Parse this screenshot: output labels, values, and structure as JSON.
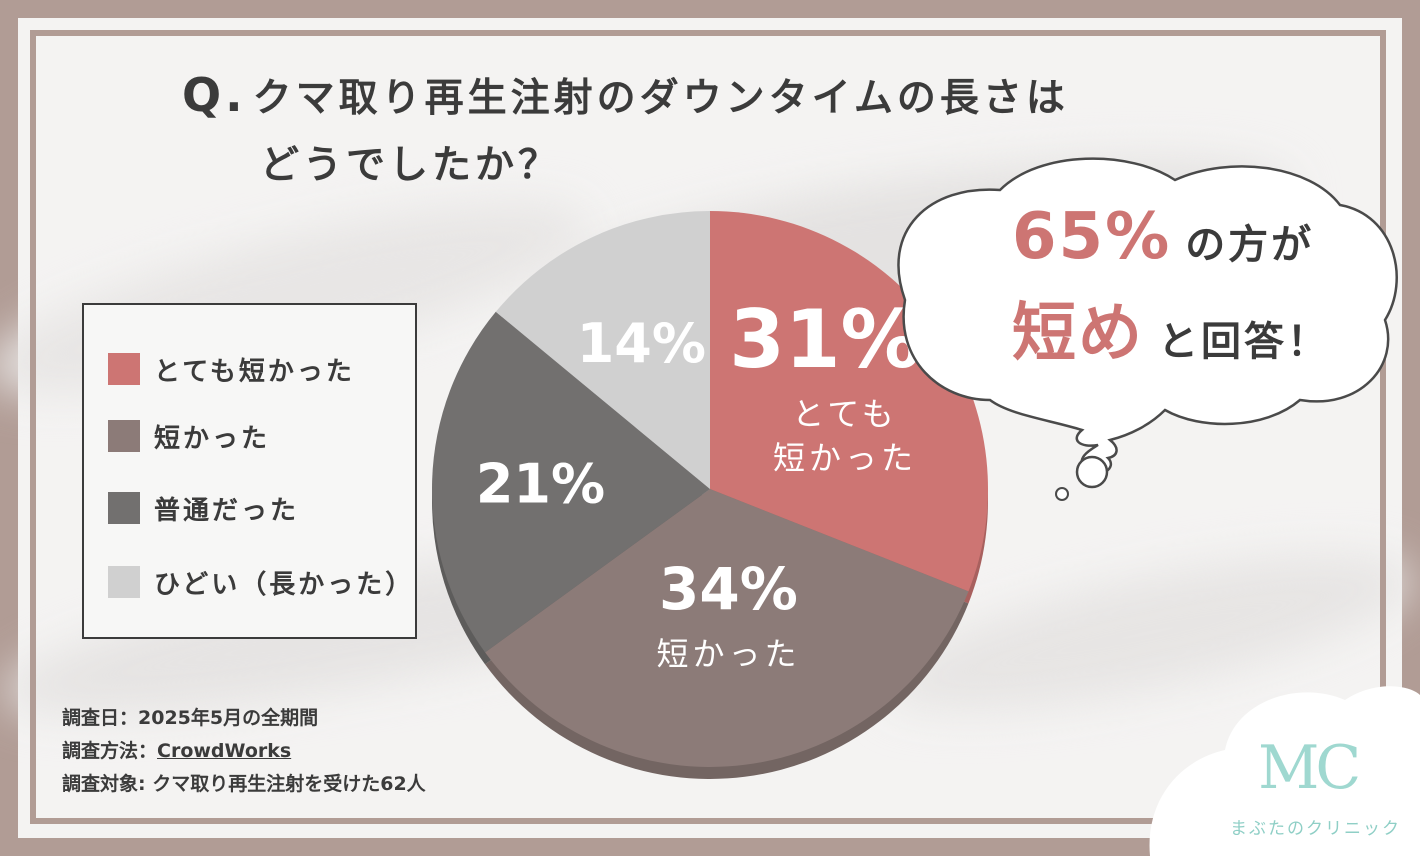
{
  "title": {
    "q_mark": "Q.",
    "line1": "クマ取り再生注射のダウンタイムの長さは",
    "line2": "どうでしたか？"
  },
  "chart_data": {
    "type": "pie",
    "title": "クマ取り再生注射のダウンタイムの長さはどうでしたか？",
    "slices": [
      {
        "label": "とても短かった",
        "value": 31,
        "value_text": "31%",
        "inner_label": [
          "とても",
          "短かった"
        ],
        "color": "#cd7573",
        "text_color": "#ffffff"
      },
      {
        "label": "短かった",
        "value": 34,
        "value_text": "34%",
        "inner_label": [
          "短かった"
        ],
        "color": "#8c7b78",
        "text_color": "#ffffff"
      },
      {
        "label": "普通だった",
        "value": 21,
        "value_text": "21%",
        "inner_label": [],
        "color": "#72706f",
        "text_color": "#ffffff"
      },
      {
        "label": "ひどい（長かった）",
        "value": 14,
        "value_text": "14%",
        "inner_label": [],
        "color": "#d0d0d0",
        "text_color": "#ffffff"
      }
    ],
    "start_angle": "12 o'clock",
    "direction": "clockwise",
    "legend_placement": "left"
  },
  "legend": {
    "items": [
      {
        "label": "とても短かった",
        "color": "#cd7573"
      },
      {
        "label": "短かった",
        "color": "#8c7b78"
      },
      {
        "label": "普通だった",
        "color": "#72706f"
      },
      {
        "label": "ひどい（長かった）",
        "color": "#d0d0d0"
      }
    ]
  },
  "callout": {
    "percent": "65%",
    "text1": "の方が",
    "highlight": "短め",
    "text2": "と回答！",
    "accent_color": "#cd7573"
  },
  "notes": {
    "date_label": "調査日：",
    "date_value": "2025年5月の全期間",
    "method_label": "調査方法：",
    "method_value": "CrowdWorks",
    "target_label": "調査対象: ",
    "target_value": "クマ取り再生注射を受けた62人"
  },
  "logo": {
    "mark": "MC",
    "name": "まぶたのクリニック",
    "color": "#9fd8d0"
  },
  "colors": {
    "frame": "#b19c95",
    "background": "#f4f3f2",
    "text": "#3b3b3b"
  }
}
